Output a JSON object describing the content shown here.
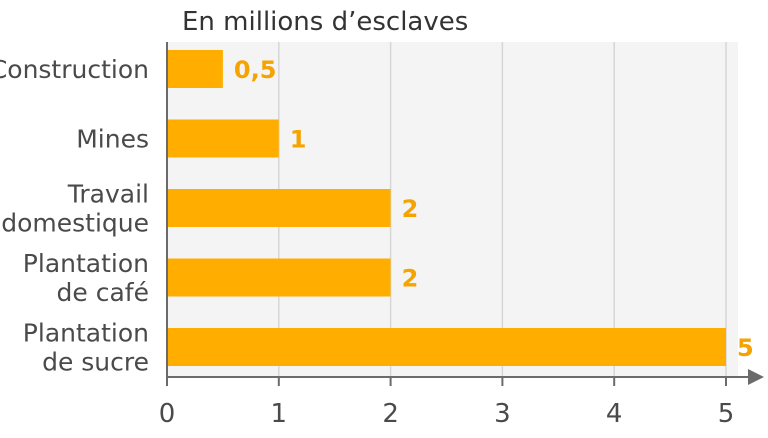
{
  "chart_data": {
    "type": "bar",
    "orientation": "horizontal",
    "title": "En millions d’esclaves",
    "categories": [
      [
        "Construction"
      ],
      [
        "Mines"
      ],
      [
        "Travail",
        "domestique"
      ],
      [
        "Plantation",
        "de café"
      ],
      [
        "Plantation",
        "de sucre"
      ]
    ],
    "values": [
      0.5,
      1,
      2,
      2,
      5
    ],
    "value_labels": [
      "0,5",
      "1",
      "2",
      "2",
      "5"
    ],
    "xticks": [
      "0",
      "1",
      "2",
      "3",
      "4",
      "5"
    ],
    "xlim": [
      0,
      5
    ],
    "grid": "vertical",
    "colors": {
      "bar": "#FFAE00",
      "value_label": "#F5A300",
      "plot_bg": "#F4F4F4",
      "grid": "#D6D6D6",
      "axis": "#6B6B6B"
    }
  }
}
